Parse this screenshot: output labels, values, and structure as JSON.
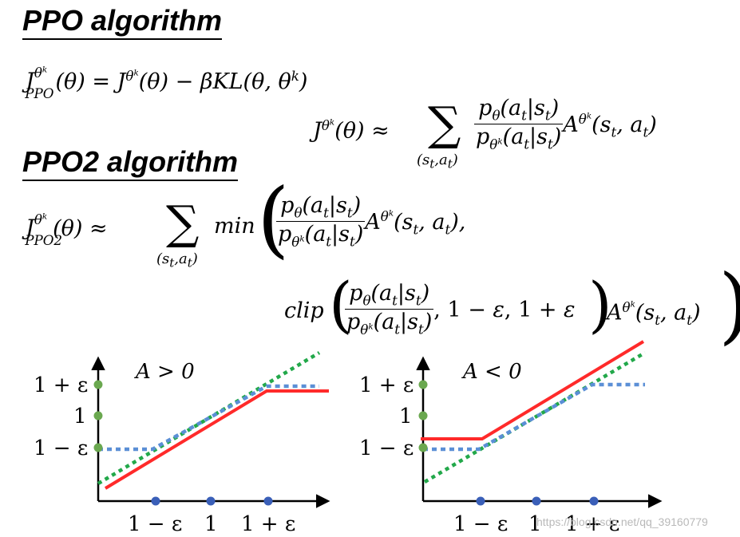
{
  "headings": {
    "ppo": "PPO algorithm",
    "ppo2": "PPO2 algorithm"
  },
  "equations": {
    "ppo_lhs": "J",
    "ppo_lhs_sup": "θk",
    "ppo_lhs_sub": "PPO",
    "ppo_rhs": "(θ) = J^θk(θ) − βKL(θ, θ^k)",
    "jtheta_lhs": "J^θk(θ) ≈",
    "sum_sub": "(st,at)",
    "ratio_num": "pθ(at|st)",
    "ratio_den": "pθk(at|st)",
    "advantage": "A^θk(st, at)",
    "ppo2_lhs": "J^θk_PPO2(θ) ≈",
    "min_word": "min",
    "clip_word": "clip",
    "clip_args": ", 1 − ε, 1 + ε"
  },
  "plots": [
    {
      "condition": "A > 0",
      "y_ticks": [
        "1 + ε",
        "1",
        "1 − ε"
      ],
      "x_ticks": [
        "1 − ε",
        "1",
        "1 + ε"
      ]
    },
    {
      "condition": "A < 0",
      "y_ticks": [
        "1 + ε",
        "1",
        "1 − ε"
      ],
      "x_ticks": [
        "1 − ε",
        "1",
        "1 + ε"
      ]
    }
  ],
  "colors": {
    "clipped_objective": "#ff2a2a",
    "unclipped_line": "#22a84a",
    "clip_function": "#5b8fd6",
    "x_dot": "#3a5fb8",
    "y_dot": "#6aa84f",
    "axis": "#000000"
  },
  "watermark": "https://blog.csdn.net/qq_39160779"
}
